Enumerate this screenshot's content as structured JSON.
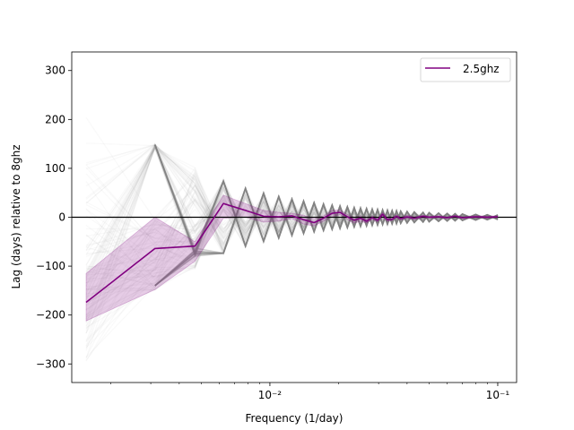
{
  "chart_data": {
    "type": "line",
    "title": "",
    "xlabel": "Frequency (1/day)",
    "ylabel": "Lag (days) relative to 8ghz",
    "xscale": "log",
    "xlim": [
      0.00135,
      0.121
    ],
    "ylim": [
      -338,
      338
    ],
    "yticks": [
      -300,
      -200,
      -100,
      0,
      100,
      200,
      300
    ],
    "xticks": [
      {
        "value": 0.01,
        "label": "10⁻²"
      },
      {
        "value": 0.1,
        "label": "10⁻¹"
      }
    ],
    "grid": false,
    "zero_line": 0,
    "legend": {
      "placement": "top-right"
    },
    "series": [
      {
        "name": "2.5ghz",
        "color": "#800080",
        "x": [
          0.00156,
          0.00313,
          0.00469,
          0.00625,
          0.00781,
          0.00938,
          0.01094,
          0.0125,
          0.01406,
          0.01563,
          0.01719,
          0.01875,
          0.02031,
          0.02188,
          0.02344,
          0.025,
          0.02656,
          0.02813,
          0.02969,
          0.03125,
          0.03281,
          0.03438,
          0.03594,
          0.0375,
          0.04,
          0.043,
          0.047,
          0.05,
          0.055,
          0.06,
          0.065,
          0.07,
          0.08,
          0.09,
          0.1
        ],
        "y": [
          -174,
          -64,
          -59,
          28,
          14,
          2,
          1,
          3,
          -5,
          -11,
          -2,
          8,
          10,
          1,
          -6,
          -2,
          -8,
          -1,
          -6,
          6,
          -5,
          -4,
          2,
          -3,
          1,
          -2,
          2,
          0,
          1,
          -1,
          2,
          -1,
          1,
          0,
          1
        ],
        "band_upper": [
          -115,
          0,
          -50,
          45,
          28,
          14,
          10,
          8,
          4,
          -3,
          3,
          14,
          15,
          6,
          0,
          3,
          -3,
          3,
          -2,
          10,
          -1,
          0,
          5,
          0,
          4,
          1,
          4,
          2,
          3,
          1,
          4,
          1,
          3,
          2,
          3
        ],
        "band_lower": [
          -212,
          -148,
          -90,
          -2,
          0,
          -10,
          -8,
          -3,
          -14,
          -18,
          -8,
          1,
          5,
          -5,
          -12,
          -8,
          -12,
          -5,
          -10,
          2,
          -9,
          -7,
          -1,
          -6,
          -2,
          -5,
          -1,
          -2,
          -1,
          -3,
          0,
          -3,
          -1,
          -2,
          -1
        ]
      }
    ]
  }
}
